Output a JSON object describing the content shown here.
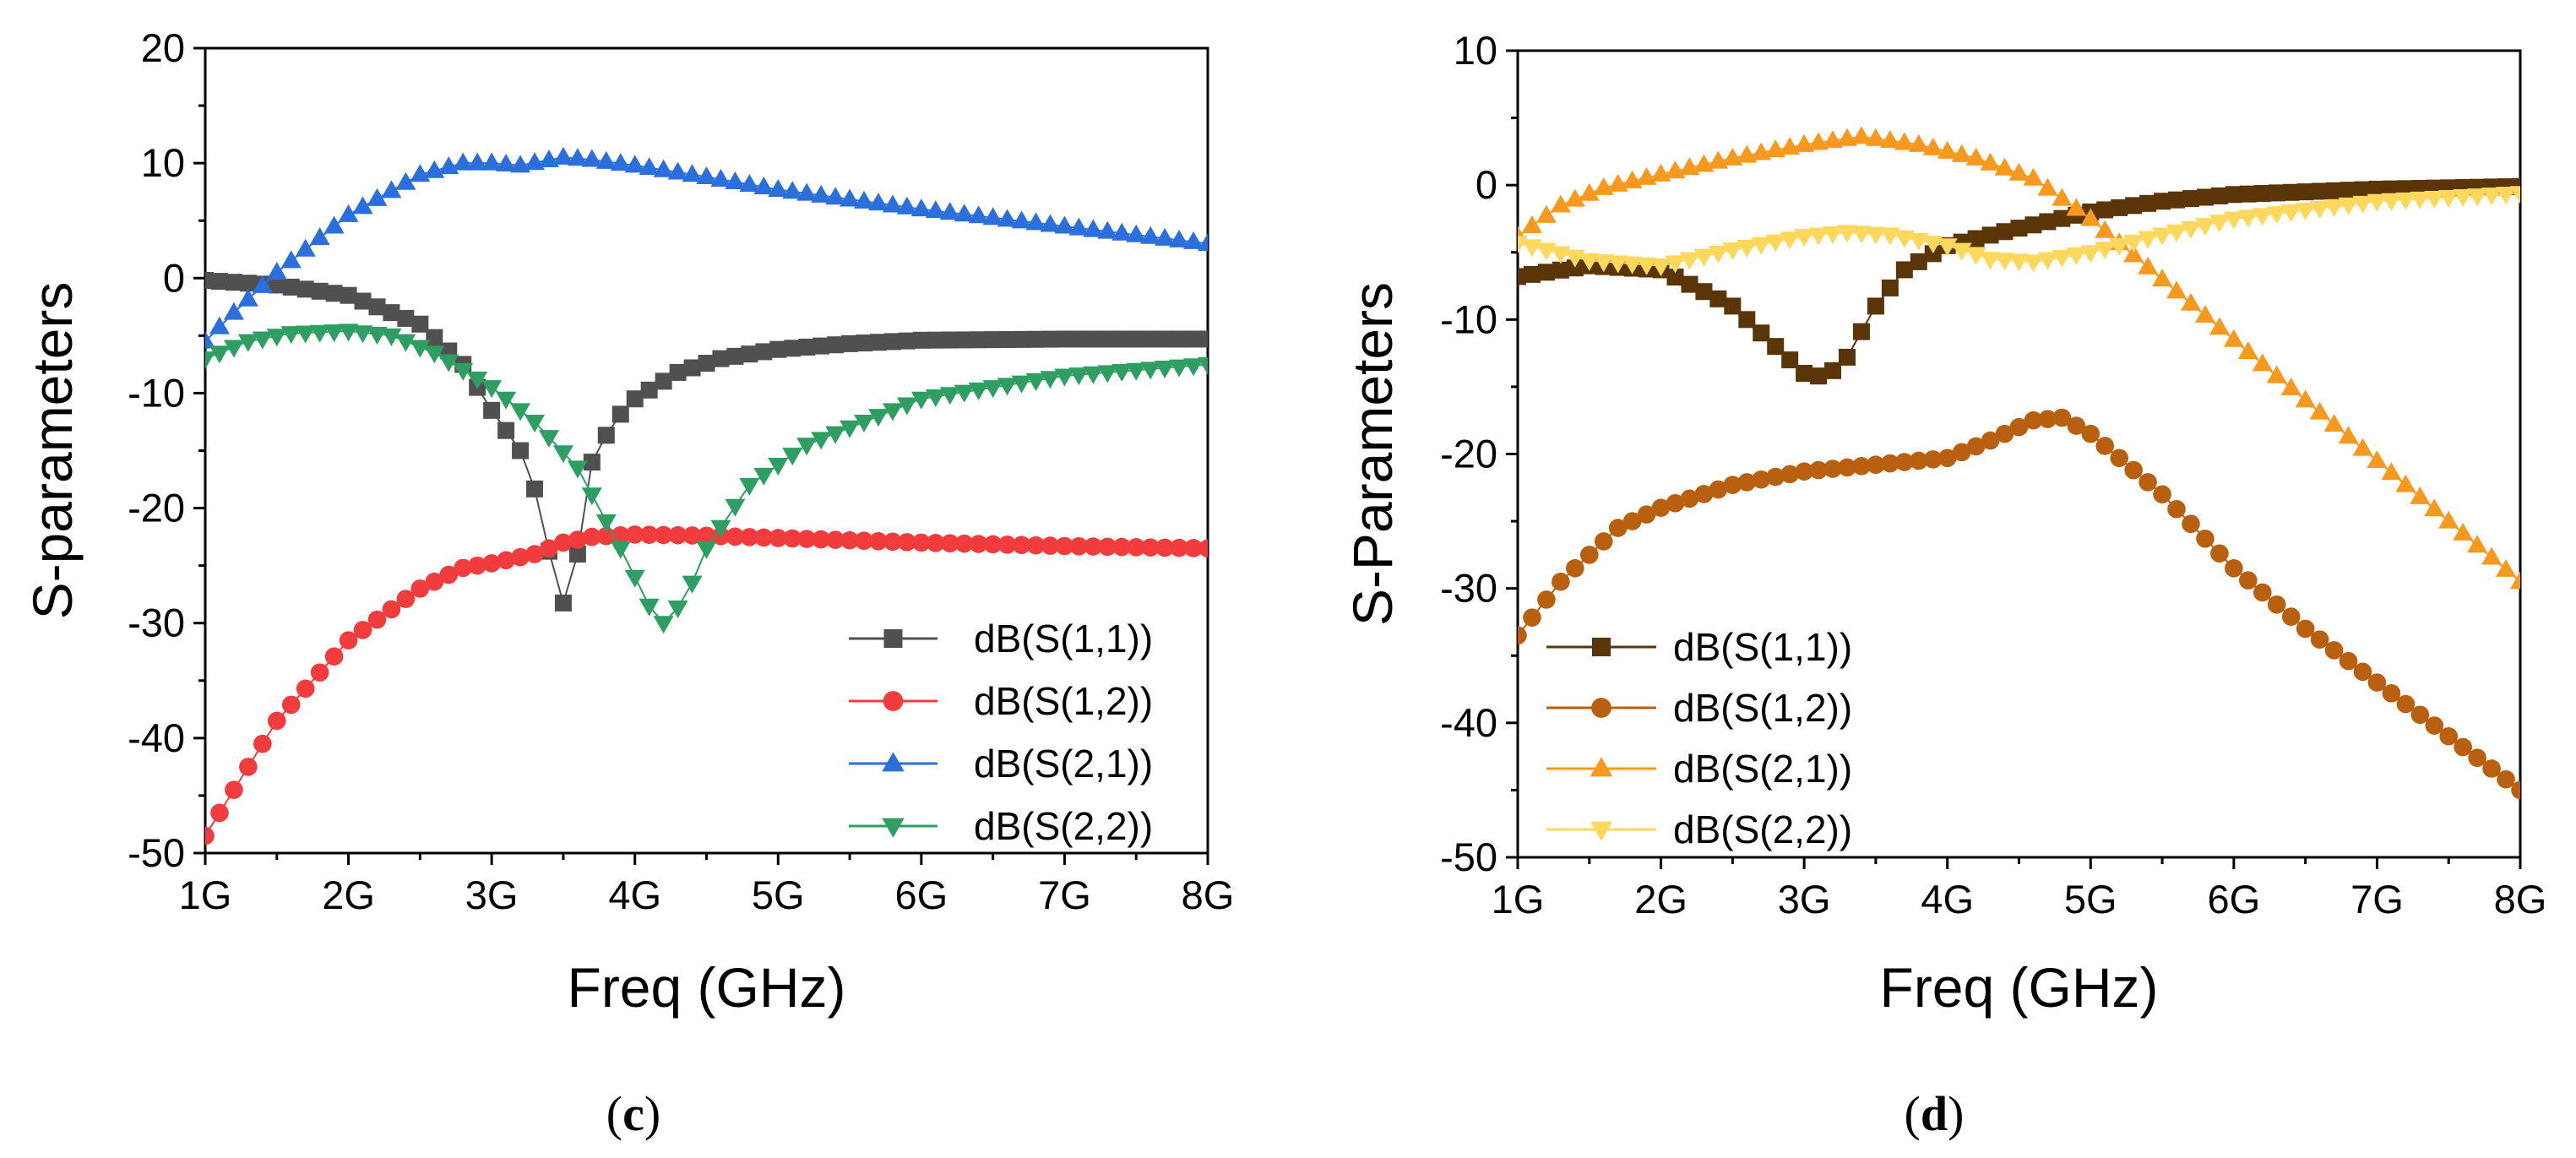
{
  "chart_data": [
    {
      "type": "scatter",
      "panel_label": "c",
      "xlabel": "Freq (GHz)",
      "ylabel": "S-parameters",
      "xlim": [
        1,
        8
      ],
      "ylim": [
        -50,
        20
      ],
      "x_ticks": [
        1,
        2,
        3,
        4,
        5,
        6,
        7,
        8
      ],
      "x_tick_labels": [
        "1G",
        "2G",
        "3G",
        "4G",
        "5G",
        "6G",
        "7G",
        "8G"
      ],
      "y_ticks": [
        -50,
        -40,
        -30,
        -20,
        -10,
        0,
        10,
        20
      ],
      "y_tick_labels": [
        "-50",
        "-40",
        "-30",
        "-20",
        "-10",
        "0",
        "10",
        "20"
      ],
      "grid": false,
      "legend_position": "bottom-right",
      "x_step_GHz": 0.1,
      "series": [
        {
          "name": "dB(S(1,1))",
          "color": "#505050",
          "marker": "square",
          "x_knots": [
            1.0,
            1.5,
            2.0,
            2.5,
            2.8,
            3.0,
            3.2,
            3.35,
            3.45,
            3.55,
            3.62,
            3.7,
            3.85,
            4.0,
            4.3,
            4.6,
            5.0,
            5.5,
            6.0,
            7.0,
            8.0
          ],
          "y_knots": [
            -0.2,
            -0.6,
            -1.5,
            -4.0,
            -7.5,
            -11.5,
            -15.0,
            -20.0,
            -27.5,
            -29.0,
            -22.0,
            -16.0,
            -12.5,
            -10.5,
            -8.2,
            -7.0,
            -6.2,
            -5.7,
            -5.4,
            -5.3,
            -5.3
          ]
        },
        {
          "name": "dB(S(1,2))",
          "color": "#f03c3c",
          "marker": "circle",
          "x_knots": [
            1.0,
            1.2,
            1.5,
            2.0,
            2.5,
            2.8,
            3.0,
            3.3,
            3.5,
            3.7,
            4.0,
            4.5,
            5.0,
            6.0,
            7.0,
            8.0
          ],
          "y_knots": [
            -48.5,
            -44.5,
            -38.5,
            -31.5,
            -27.0,
            -25.2,
            -24.8,
            -24.0,
            -23.0,
            -22.5,
            -22.3,
            -22.4,
            -22.6,
            -23.0,
            -23.3,
            -23.5
          ]
        },
        {
          "name": "dB(S(2,1))",
          "color": "#2a6fdc",
          "marker": "triangle-up",
          "x_knots": [
            1.0,
            1.2,
            1.5,
            2.0,
            2.5,
            2.8,
            3.0,
            3.2,
            3.5,
            3.7,
            4.0,
            4.5,
            5.0,
            6.0,
            7.0,
            8.0
          ],
          "y_knots": [
            -5.5,
            -3.0,
            0.5,
            5.5,
            9.0,
            10.0,
            10.0,
            9.8,
            10.5,
            10.3,
            9.8,
            8.8,
            7.7,
            6.0,
            4.5,
            3.0
          ]
        },
        {
          "name": "dB(S(2,2))",
          "color": "#2e9e63",
          "marker": "triangle-down",
          "x_knots": [
            1.0,
            1.3,
            1.6,
            2.0,
            2.3,
            2.6,
            3.0,
            3.3,
            3.6,
            3.9,
            4.1,
            4.2,
            4.35,
            4.5,
            4.8,
            5.2,
            6.0,
            7.0,
            8.0
          ],
          "y_knots": [
            -7.0,
            -5.5,
            -4.8,
            -4.6,
            -5.0,
            -6.5,
            -9.5,
            -12.5,
            -16.5,
            -23.5,
            -28.5,
            -30.0,
            -28.0,
            -23.5,
            -18.0,
            -14.5,
            -10.5,
            -8.5,
            -7.5
          ]
        }
      ]
    },
    {
      "type": "scatter",
      "panel_label": "d",
      "xlabel": "Freq (GHz)",
      "ylabel": "S-Parameters",
      "xlim": [
        1,
        8
      ],
      "ylim": [
        -50,
        10
      ],
      "x_ticks": [
        1,
        2,
        3,
        4,
        5,
        6,
        7,
        8
      ],
      "x_tick_labels": [
        "1G",
        "2G",
        "3G",
        "4G",
        "5G",
        "6G",
        "7G",
        "8G"
      ],
      "y_ticks": [
        -50,
        -40,
        -30,
        -20,
        -10,
        0,
        10
      ],
      "y_tick_labels": [
        "-50",
        "-40",
        "-30",
        "-20",
        "-10",
        "0",
        "10"
      ],
      "grid": false,
      "legend_position": "bottom-left",
      "x_step_GHz": 0.1,
      "series": [
        {
          "name": "dB(S(1,1))",
          "color": "#5a3508",
          "marker": "square",
          "x_knots": [
            1.0,
            1.5,
            2.0,
            2.5,
            2.8,
            3.0,
            3.15,
            3.3,
            3.5,
            3.7,
            4.0,
            4.5,
            5.0,
            5.5,
            6.0,
            7.0,
            8.0
          ],
          "y_knots": [
            -6.8,
            -6.0,
            -6.3,
            -9.0,
            -12.0,
            -14.0,
            -14.3,
            -12.8,
            -9.0,
            -6.3,
            -4.5,
            -3.2,
            -2.0,
            -1.2,
            -0.7,
            -0.3,
            -0.1
          ]
        },
        {
          "name": "dB(S(1,2))",
          "color": "#b8600f",
          "marker": "circle",
          "x_knots": [
            1.0,
            1.3,
            1.7,
            2.0,
            2.5,
            3.0,
            3.5,
            4.0,
            4.3,
            4.6,
            4.8,
            5.0,
            5.5,
            6.0,
            6.5,
            7.0,
            7.5,
            8.0
          ],
          "y_knots": [
            -33.5,
            -29.5,
            -25.5,
            -24.0,
            -22.3,
            -21.3,
            -20.8,
            -20.3,
            -19.0,
            -17.5,
            -17.3,
            -18.5,
            -23.0,
            -28.5,
            -33.0,
            -37.0,
            -41.0,
            -45.0
          ]
        },
        {
          "name": "dB(S(2,1))",
          "color": "#f7991f",
          "marker": "triangle-up",
          "x_knots": [
            1.0,
            1.3,
            1.6,
            2.0,
            2.5,
            3.0,
            3.4,
            3.8,
            4.2,
            4.6,
            5.0,
            5.5,
            6.0,
            6.5,
            7.0,
            7.5,
            8.0
          ],
          "y_knots": [
            -3.8,
            -1.5,
            -0.2,
            0.8,
            2.0,
            3.0,
            3.6,
            3.0,
            2.0,
            0.5,
            -2.5,
            -7.0,
            -11.5,
            -16.0,
            -20.5,
            -25.0,
            -29.5
          ]
        },
        {
          "name": "dB(S(2,2))",
          "color": "#fdd85d",
          "marker": "triangle-down",
          "x_knots": [
            1.0,
            1.5,
            2.0,
            2.5,
            3.0,
            3.3,
            3.6,
            4.0,
            4.3,
            4.6,
            5.0,
            5.5,
            6.0,
            7.0,
            8.0
          ],
          "y_knots": [
            -4.3,
            -5.6,
            -6.0,
            -4.8,
            -3.8,
            -3.5,
            -3.7,
            -4.5,
            -5.5,
            -5.7,
            -5.0,
            -3.7,
            -2.5,
            -1.2,
            -0.6
          ]
        }
      ]
    }
  ]
}
